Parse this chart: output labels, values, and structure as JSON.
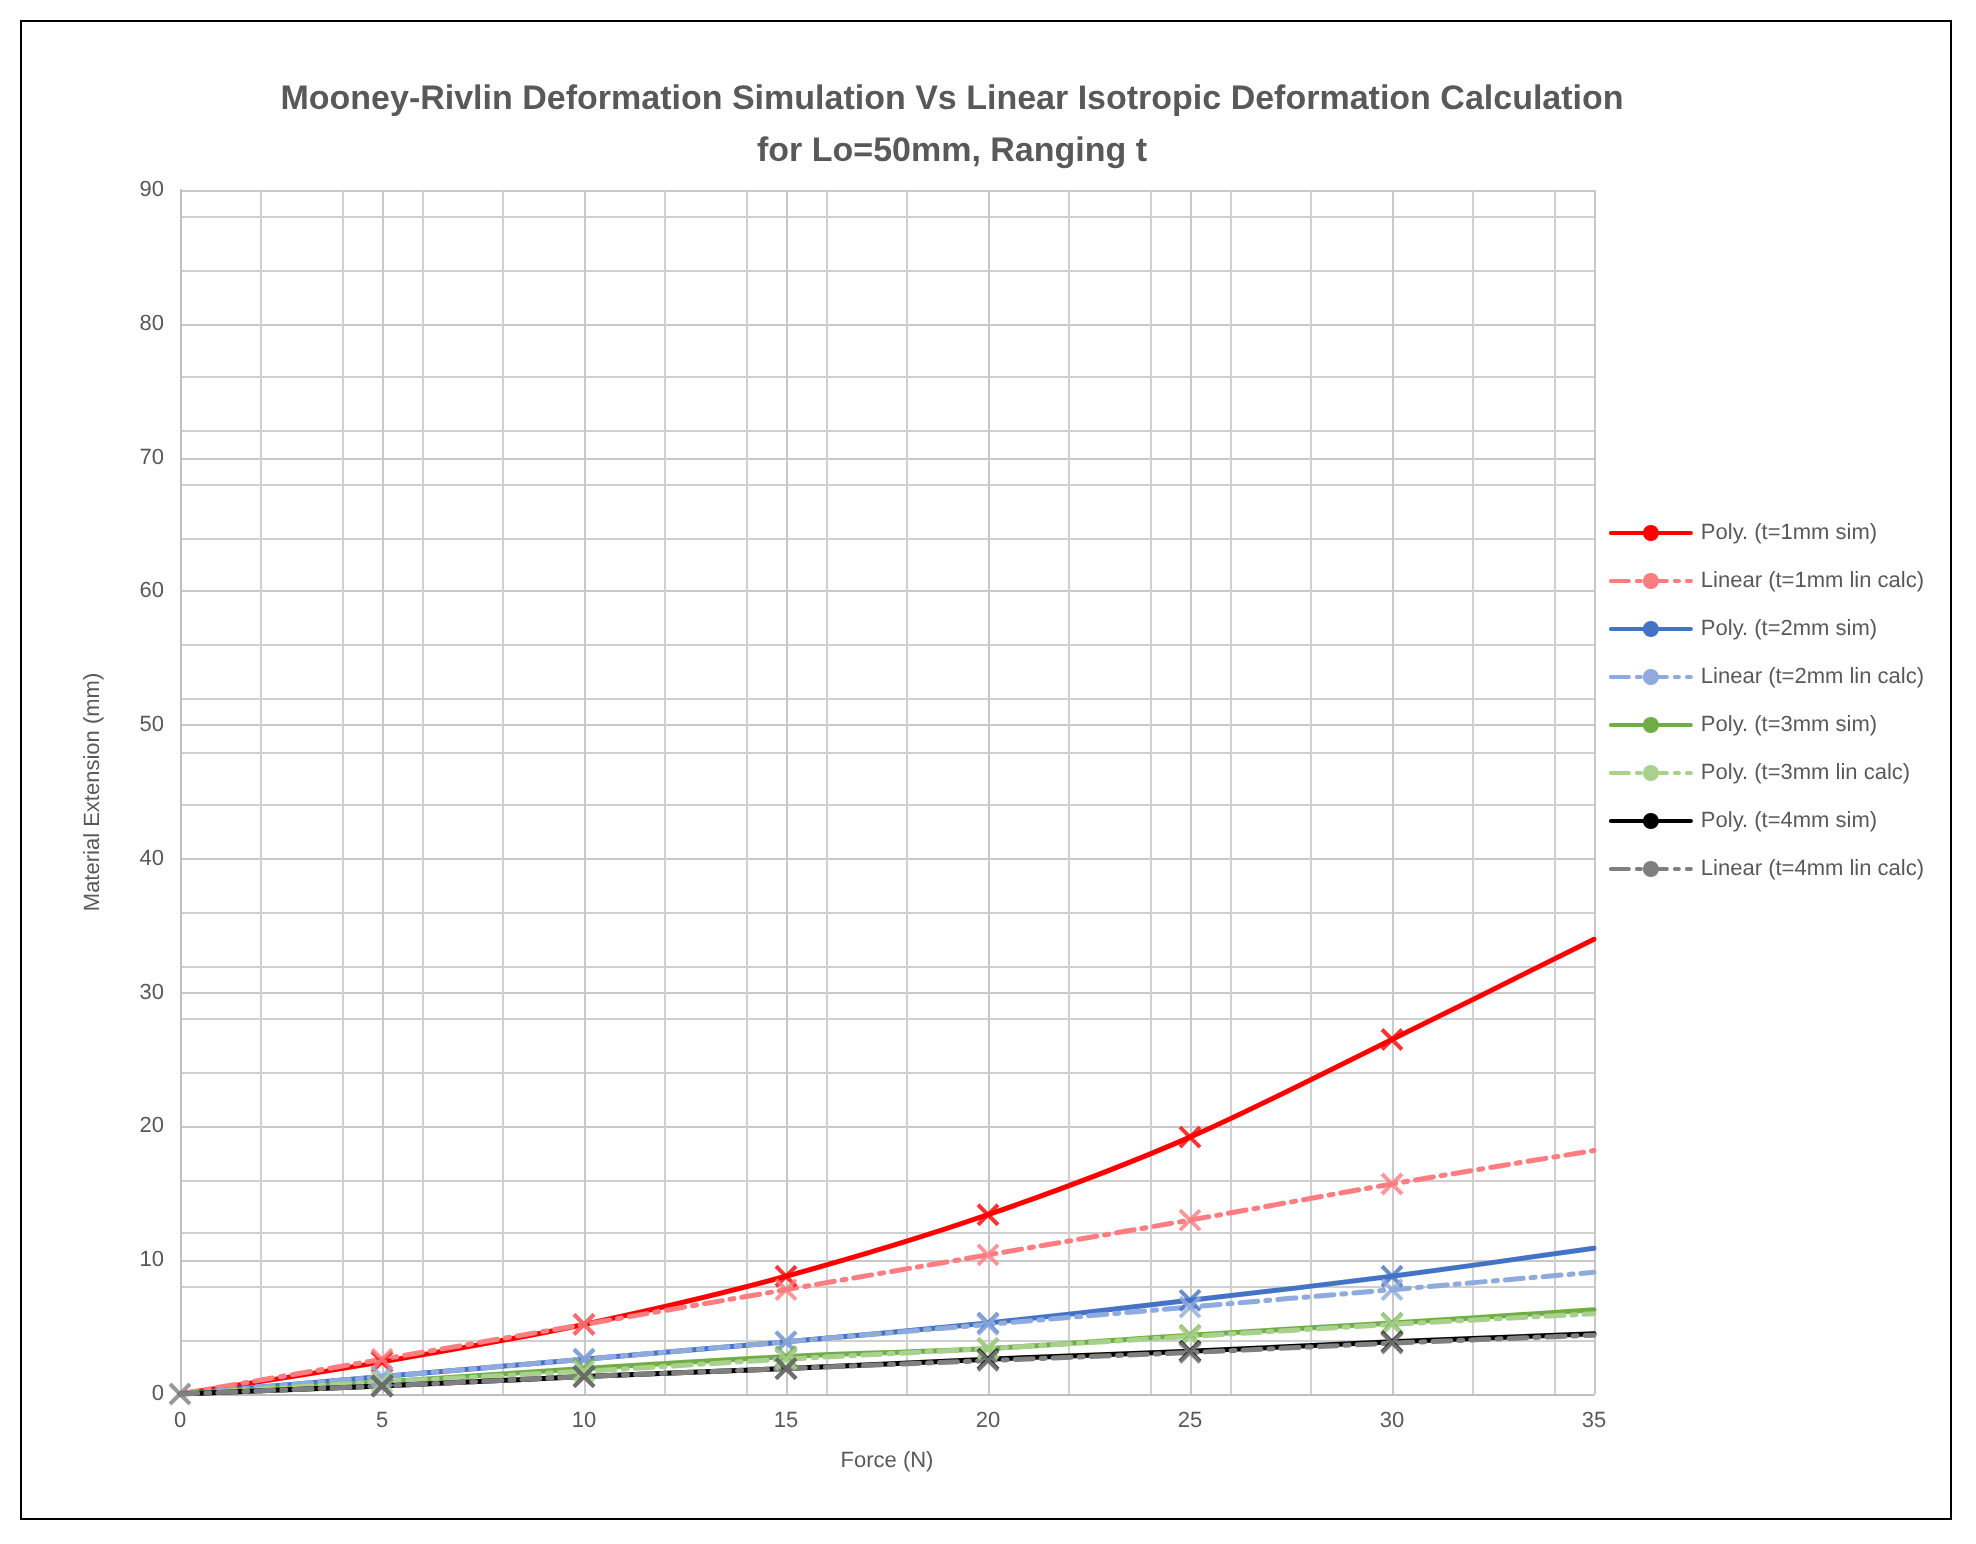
{
  "chart_data": {
    "type": "line",
    "title": "Mooney-Rivlin Deformation Simulation Vs Linear Isotropic Deformation Calculation\nfor Lo=50mm, Ranging t",
    "xlabel": "Force (N)",
    "ylabel": "Material Extension (mm)",
    "xlim": [
      0,
      35
    ],
    "ylim": [
      0,
      90
    ],
    "xticks": [
      0,
      5,
      10,
      15,
      20,
      25,
      30,
      35
    ],
    "yticks": [
      0,
      10,
      20,
      30,
      40,
      50,
      60,
      70,
      80,
      90
    ],
    "grid": true,
    "legend": "right",
    "x": [
      0,
      5,
      10,
      15,
      20,
      25,
      30,
      35
    ],
    "series": [
      {
        "name": "Poly. (t=1mm sim)",
        "color": "#ff0000",
        "line_style": "solid",
        "marker": "none",
        "values": [
          0,
          2.4,
          5.2,
          8.8,
          13.4,
          19.2,
          26.5,
          34
        ]
      },
      {
        "name": "Linear (t=1mm lin calc)",
        "color": "#ff7c80",
        "line_style": "dashed",
        "marker": "none",
        "values": [
          0,
          2.6,
          5.2,
          7.8,
          10.4,
          13.0,
          15.7,
          18.2
        ]
      },
      {
        "name": "Poly. (t=2mm sim)",
        "color": "#4472c4",
        "line_style": "solid",
        "marker": "none",
        "values": [
          0,
          1.3,
          2.6,
          3.9,
          5.3,
          7.0,
          8.8,
          10.9
        ]
      },
      {
        "name": "Linear (t=2mm lin calc)",
        "color": "#8faadc",
        "line_style": "dashed",
        "marker": "none",
        "values": [
          0,
          1.3,
          2.6,
          3.9,
          5.2,
          6.5,
          7.8,
          9.1
        ]
      },
      {
        "name": "Poly. (t=3mm sim)",
        "color": "#70ad47",
        "line_style": "solid",
        "marker": "none",
        "values": [
          0,
          0.9,
          1.9,
          2.8,
          3.4,
          4.4,
          5.3,
          6.3
        ]
      },
      {
        "name": "Poly. (t=3mm lin calc)",
        "color": "#a9d18e",
        "line_style": "dashed",
        "marker": "none",
        "values": [
          0,
          0.9,
          1.7,
          2.6,
          3.4,
          4.3,
          5.2,
          6.0
        ]
      },
      {
        "name": "Poly. (t=4mm sim)",
        "color": "#000000",
        "line_style": "solid",
        "marker": "none",
        "values": [
          0,
          0.6,
          1.3,
          1.9,
          2.6,
          3.2,
          3.9,
          4.5
        ]
      },
      {
        "name": "Linear (t=4mm lin calc)",
        "color": "#7f7f7f",
        "line_style": "dashed",
        "marker": "none",
        "values": [
          0,
          0.6,
          1.3,
          1.9,
          2.5,
          3.1,
          3.8,
          4.4
        ]
      },
      {
        "type": "scatter",
        "color": "#ff0000",
        "marker": "cross",
        "x": [
          5,
          10,
          15,
          20,
          25,
          30
        ],
        "values": [
          2.4,
          5.2,
          8.8,
          13.4,
          19.2,
          26.5
        ]
      },
      {
        "type": "scatter",
        "color": "#ff7c80",
        "marker": "cross",
        "x": [
          5,
          10,
          15,
          20,
          25,
          30
        ],
        "values": [
          2.6,
          5.2,
          7.8,
          10.4,
          13.0,
          15.7
        ]
      },
      {
        "type": "scatter",
        "color": "#4472c4",
        "marker": "cross",
        "x": [
          10,
          15,
          20,
          25,
          30
        ],
        "values": [
          2.6,
          3.9,
          5.3,
          7.0,
          8.8
        ]
      },
      {
        "type": "scatter",
        "color": "#8faadc",
        "marker": "cross",
        "x": [
          5,
          10,
          15,
          20,
          25,
          30
        ],
        "values": [
          1.3,
          2.6,
          3.9,
          5.2,
          6.5,
          7.8
        ]
      },
      {
        "type": "scatter",
        "color": "#70ad47",
        "marker": "cross",
        "x": [
          10,
          15,
          20,
          25,
          30
        ],
        "values": [
          1.9,
          2.8,
          3.4,
          4.4,
          5.3
        ]
      },
      {
        "type": "scatter",
        "color": "#a9d18e",
        "marker": "cross",
        "x": [
          5,
          10,
          15,
          20,
          25,
          30
        ],
        "values": [
          0.9,
          1.7,
          2.6,
          3.4,
          4.3,
          5.2
        ]
      },
      {
        "type": "scatter",
        "color": "#000000",
        "marker": "cross",
        "x": [
          5,
          10,
          15,
          20,
          25,
          30
        ],
        "values": [
          0.6,
          1.3,
          1.9,
          2.6,
          3.2,
          3.9
        ]
      },
      {
        "type": "scatter",
        "color": "#7f7f7f",
        "marker": "cross",
        "x": [
          0,
          5,
          10,
          15,
          20,
          25,
          30
        ],
        "values": [
          0,
          0.6,
          1.3,
          1.9,
          2.5,
          3.1,
          3.8
        ]
      }
    ]
  }
}
